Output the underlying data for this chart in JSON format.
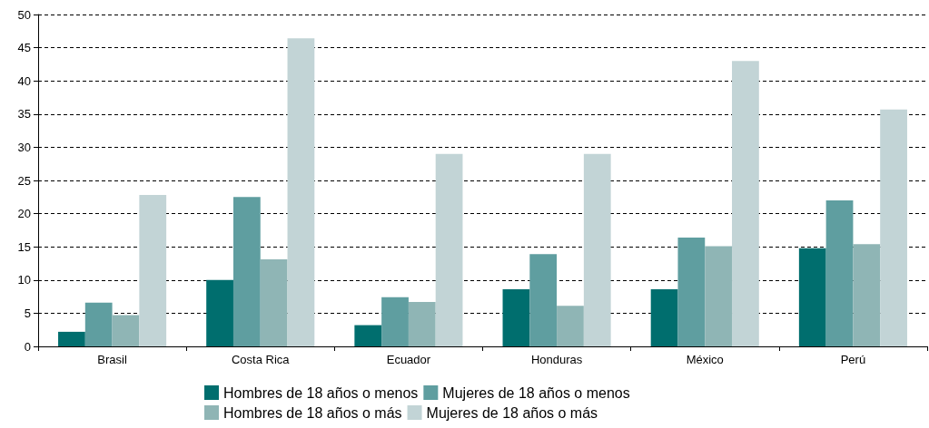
{
  "chart_data": {
    "type": "bar",
    "categories": [
      "Brasil",
      "Costa Rica",
      "Ecuador",
      "Honduras",
      "México",
      "Perú"
    ],
    "series": [
      {
        "name": "Hombres de 18 años o menos",
        "color": "#006e6e",
        "values": [
          2.2,
          10.0,
          3.2,
          8.6,
          8.6,
          14.8
        ]
      },
      {
        "name": "Mujeres de 18 años o menos",
        "color": "#5f9ea0",
        "values": [
          6.6,
          22.5,
          7.4,
          13.9,
          16.4,
          22.0
        ]
      },
      {
        "name": "Hombres de 18 años o más",
        "color": "#8fb5b5",
        "values": [
          4.7,
          13.1,
          6.7,
          6.1,
          15.1,
          15.4
        ]
      },
      {
        "name": "Mujeres de 18 años o más",
        "color": "#c2d4d6",
        "values": [
          22.8,
          46.4,
          29.0,
          29.0,
          43.0,
          35.7
        ]
      }
    ],
    "ylim": [
      0,
      50
    ],
    "yticks": [
      0,
      5,
      10,
      15,
      20,
      25,
      30,
      35,
      40,
      45,
      50
    ],
    "grid": "y",
    "legend": "bottom"
  }
}
